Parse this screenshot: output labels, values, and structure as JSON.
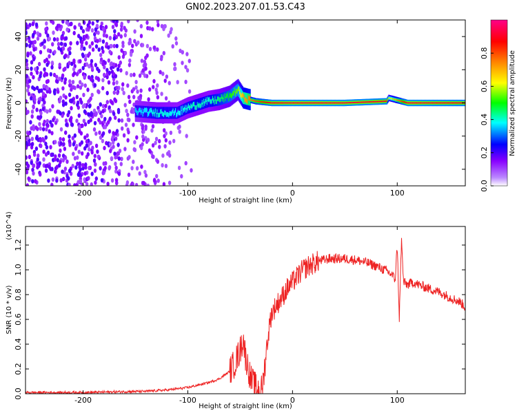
{
  "title": "GN02.2023.207.01.53.C43",
  "chart_data": [
    {
      "type": "heatmap",
      "xlabel": "Height of straight line (km)",
      "ylabel": "Frequency (Hz)",
      "xlim": [
        -255,
        165
      ],
      "ylim": [
        -50,
        50
      ],
      "xticks": [
        -200,
        -100,
        0,
        100
      ],
      "yticks": [
        -40,
        -20,
        0,
        20,
        40
      ],
      "colorbar": {
        "label": "Normalized spectral amplitude",
        "range": [
          0,
          1
        ],
        "ticks": [
          0.0,
          0.2,
          0.4,
          0.6,
          0.8
        ],
        "colormap": [
          "#ffffff",
          "#8800ff",
          "#0000ff",
          "#00ffff",
          "#00ff00",
          "#ffff00",
          "#ff8000",
          "#ff0000",
          "#ff0080"
        ]
      },
      "ridge": [
        {
          "x": -150,
          "y": -5,
          "amp": 0.35
        },
        {
          "x": -130,
          "y": -6,
          "amp": 0.4
        },
        {
          "x": -110,
          "y": -6,
          "amp": 0.38
        },
        {
          "x": -100,
          "y": -3,
          "amp": 0.4
        },
        {
          "x": -90,
          "y": -1,
          "amp": 0.42
        },
        {
          "x": -80,
          "y": 1,
          "amp": 0.4
        },
        {
          "x": -70,
          "y": 2,
          "amp": 0.45
        },
        {
          "x": -60,
          "y": 4,
          "amp": 0.5
        },
        {
          "x": -52,
          "y": 8,
          "amp": 0.55
        },
        {
          "x": -47,
          "y": 3,
          "amp": 0.7
        },
        {
          "x": -35,
          "y": 1,
          "amp": 0.8
        },
        {
          "x": -20,
          "y": 0,
          "amp": 0.9
        },
        {
          "x": 0,
          "y": 0,
          "amp": 0.92
        },
        {
          "x": 50,
          "y": 0,
          "amp": 0.92
        },
        {
          "x": 90,
          "y": 1,
          "amp": 0.9
        },
        {
          "x": 92,
          "y": 3,
          "amp": 0.6
        },
        {
          "x": 110,
          "y": 0,
          "amp": 0.92
        },
        {
          "x": 165,
          "y": 0,
          "amp": 0.9
        }
      ]
    },
    {
      "type": "line",
      "xlabel": "Height of straight line (km)",
      "ylabel": "SNR (10 * v/v)",
      "scale_note": "(x10^4)",
      "xlim": [
        -255,
        165
      ],
      "ylim": [
        0,
        1.35
      ],
      "xticks": [
        -200,
        -100,
        0,
        100
      ],
      "yticks": [
        0.0,
        0.2,
        0.4,
        0.6,
        0.8,
        1.0,
        1.2
      ],
      "color": "#ee2222",
      "x": [
        -255,
        -230,
        -200,
        -170,
        -140,
        -120,
        -100,
        -90,
        -80,
        -70,
        -60,
        -55,
        -50,
        -47,
        -45,
        -42,
        -40,
        -35,
        -30,
        -28,
        -25,
        -22,
        -20,
        -15,
        -10,
        -5,
        0,
        5,
        10,
        15,
        20,
        25,
        30,
        35,
        40,
        45,
        50,
        60,
        70,
        80,
        90,
        95,
        98,
        100,
        102,
        104,
        106,
        110,
        115,
        120,
        130,
        140,
        150,
        160,
        165
      ],
      "y": [
        0.01,
        0.01,
        0.01,
        0.015,
        0.02,
        0.03,
        0.05,
        0.07,
        0.09,
        0.12,
        0.18,
        0.25,
        0.35,
        0.45,
        0.3,
        0.2,
        0.12,
        0.05,
        0.02,
        0.1,
        0.35,
        0.55,
        0.65,
        0.72,
        0.78,
        0.85,
        0.9,
        0.95,
        1.0,
        1.03,
        1.05,
        1.07,
        1.08,
        1.09,
        1.09,
        1.09,
        1.09,
        1.08,
        1.06,
        1.03,
        0.99,
        0.96,
        0.92,
        1.2,
        0.6,
        1.25,
        0.9,
        0.88,
        0.9,
        0.88,
        0.85,
        0.82,
        0.78,
        0.74,
        0.7
      ]
    }
  ]
}
